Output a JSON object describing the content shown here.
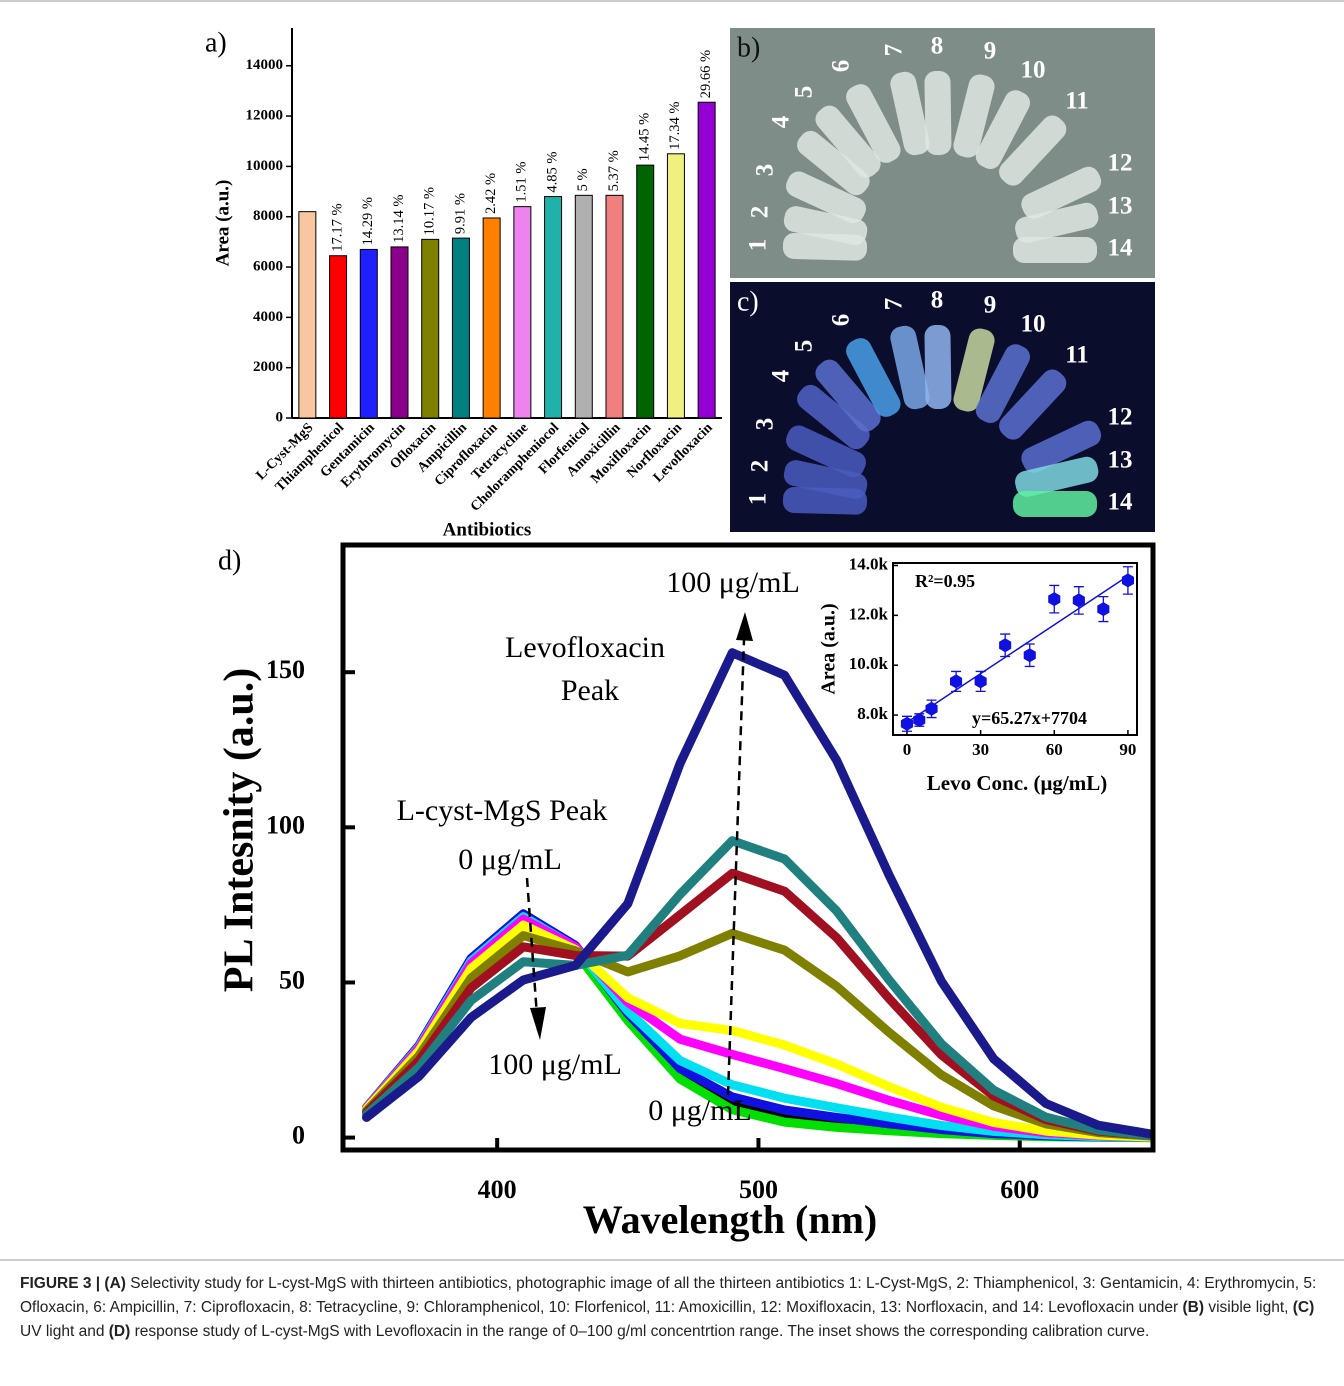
{
  "chart_data": [
    {
      "type": "bar",
      "panel_label": "a)",
      "x_label": "Antibiotics",
      "y_label": "Area (a.u.)",
      "categories": [
        "L-Cyst-MgS",
        "Thiamphenicol",
        "Gentamicin",
        "Erythromycin",
        "Ofloxacin",
        "Ampicillin",
        "Ciprofloxacin",
        "Tetracycline",
        "Cholorampheniocol",
        "Florfenicol",
        "Amoxicillin",
        "Moxifloxacin",
        "Norfloxacin",
        "Levofloxacin"
      ],
      "values": [
        8200,
        6450,
        6700,
        6800,
        7100,
        7150,
        7950,
        8400,
        8800,
        8850,
        8850,
        10050,
        10500,
        12550
      ],
      "bar_labels": [
        null,
        "17.17 %",
        "14.29 %",
        "13.14 %",
        "10.17 %",
        "9.91 %",
        "2.42 %",
        "1.51 %",
        "4.85 %",
        "5 %",
        "5.37 %",
        "14.45 %",
        "17.34 %",
        "29.66 %"
      ],
      "colors": [
        "#f9c79f",
        "#ff0000",
        "#1f1fff",
        "#8b008b",
        "#808000",
        "#008080",
        "#ff8000",
        "#ee82ee",
        "#20b2aa",
        "#b0b0b0",
        "#f08080",
        "#006400",
        "#f0f080",
        "#9400d3"
      ],
      "ylim": [
        0,
        15500
      ],
      "yticks": [
        0,
        2000,
        4000,
        6000,
        8000,
        10000,
        12000,
        14000
      ]
    },
    {
      "type": "line",
      "panel_label": "d)",
      "x_label": "Wavelength (nm)",
      "y_label": "PL Intesnity (a.u.)",
      "x": [
        350,
        370,
        390,
        410,
        430,
        450,
        470,
        490,
        510,
        530,
        550,
        570,
        590,
        610,
        630,
        650
      ],
      "series": [
        {
          "color": "#000000",
          "values": [
            9.7,
            29.6,
            57.7,
            72.1,
            61.7,
            39.4,
            20.8,
            11.2,
            7,
            4.9,
            3.3,
            2,
            1,
            0.4,
            0.2,
            0
          ]
        },
        {
          "color": "#00e000",
          "values": [
            9.5,
            28.8,
            56.1,
            70.1,
            59.8,
            37.7,
            18.9,
            9,
            5,
            3.3,
            2.2,
            1.3,
            0.7,
            0.3,
            0.1,
            0
          ]
        },
        {
          "color": "#1010e0",
          "values": [
            9.7,
            29.6,
            57.7,
            72.1,
            61.9,
            40,
            22.2,
            13.1,
            8.9,
            6.5,
            4.4,
            2.6,
            1.3,
            0.6,
            0.2,
            0.1
          ]
        },
        {
          "color": "#00e0f0",
          "values": [
            9.6,
            29.2,
            56.9,
            71.2,
            61.4,
            40.8,
            24.8,
            17,
            12.7,
            9.6,
            6.6,
            3.9,
            2,
            0.9,
            0.3,
            0.1
          ]
        },
        {
          "color": "#ff00ff",
          "values": [
            9.5,
            28.8,
            56.1,
            70.4,
            61.5,
            43.6,
            31.7,
            26.8,
            22.2,
            17.4,
            12,
            7.2,
            3.6,
            1.6,
            0.6,
            0.2
          ]
        },
        {
          "color": "#ffff00",
          "values": [
            9.2,
            27.9,
            54.5,
            68.5,
            60.6,
            45.1,
            36.8,
            34.5,
            29.8,
            23.7,
            16.4,
            9.8,
            4.9,
            2.1,
            0.8,
            0.2
          ]
        },
        {
          "color": "#808000",
          "values": [
            8.6,
            26.3,
            51.4,
            65.1,
            60.2,
            53.4,
            58.6,
            65.8,
            60.4,
            48.7,
            33.9,
            20.2,
            10.2,
            4.4,
            1.6,
            0.5
          ]
        },
        {
          "color": "#a01020",
          "values": [
            8.1,
            24.7,
            48.2,
            61.5,
            58.7,
            58.5,
            71.8,
            85.2,
            79.4,
            64.4,
            44.8,
            26.7,
            13.4,
            5.8,
            2.1,
            0.7
          ]
        },
        {
          "color": "#208080",
          "values": [
            7.4,
            22.6,
            44.2,
            56.7,
            55.5,
            58.8,
            78.4,
            95.7,
            89.8,
            73,
            50.8,
            30.2,
            15.3,
            6.6,
            2.4,
            0.7
          ]
        },
        {
          "color": "#1a1a8c",
          "values": [
            6.5,
            19.7,
            38.7,
            50.8,
            55.5,
            75.4,
            120.6,
            156.3,
            149,
            121.5,
            84.6,
            50.4,
            25.4,
            11,
            4,
            1.2
          ]
        }
      ],
      "xlim": [
        341,
        651
      ],
      "ylim": [
        -4,
        191
      ],
      "xticks": [
        400,
        500,
        600
      ],
      "yticks": [
        0,
        50,
        100,
        150
      ],
      "annotations": [
        "100 μg/mL",
        "Levofloxacin",
        "Peak",
        "L-cyst-MgS Peak",
        "0 μg/mL",
        "100 μg/mL",
        "0 μg/mL"
      ]
    },
    {
      "type": "scatter",
      "x_label": "Levo Conc. (μg/mL)",
      "y_label": "Area (a.u.)",
      "color": "#1010e0",
      "x": [
        0,
        5,
        10,
        20,
        30,
        40,
        50,
        60,
        70,
        80,
        90
      ],
      "values": [
        7650,
        7800,
        8250,
        9350,
        9350,
        10800,
        10400,
        12650,
        12600,
        12250,
        13400
      ],
      "errors": [
        300,
        250,
        350,
        400,
        400,
        450,
        450,
        550,
        550,
        500,
        550
      ],
      "fit": {
        "slope": 65.27,
        "intercept": 7704
      },
      "r2_label": "R²=0.95",
      "fit_label": "y=65.27x+7704",
      "xlim": [
        -5.7,
        93.7
      ],
      "ylim": [
        7200,
        14100
      ],
      "xticks": [
        0,
        30,
        60,
        90
      ],
      "yticks": [
        {
          "value": 8000,
          "label": "8.0k"
        },
        {
          "value": 10000,
          "label": "10.0k"
        },
        {
          "value": 12000,
          "label": "12.0k"
        },
        {
          "value": 14000,
          "label": "14.0k"
        }
      ]
    }
  ],
  "photos": {
    "b": {
      "label": "b)",
      "tubes": [
        "1",
        "2",
        "3",
        "4",
        "5",
        "6",
        "7",
        "8",
        "9",
        "10",
        "11",
        "12",
        "13",
        "14"
      ]
    },
    "c": {
      "label": "c)",
      "tubes": [
        "1",
        "2",
        "3",
        "4",
        "5",
        "6",
        "7",
        "8",
        "9",
        "10",
        "11",
        "12",
        "13",
        "14"
      ]
    }
  },
  "caption": [
    {
      "text": "FIGURE 3 | (A)",
      "bold": true
    },
    {
      "text": " Selectivity study for L-cyst-MgS with thirteen antibiotics, photographic image of all the thirteen antibiotics 1: L-Cyst-MgS, 2: Thiamphenicol, 3: Gentamicin, 4: Erythromycin, 5: Ofloxacin, 6: Ampicillin, 7: Ciprofloxacin, 8: Tetracycline, 9: Chloramphenicol, 10: Florfenicol, 11: Amoxicillin, 12: Moxifloxacin, 13: Norfloxacin, and 14: Levofloxacin under ",
      "bold": false
    },
    {
      "text": "(B)",
      "bold": true
    },
    {
      "text": " visible light, ",
      "bold": false
    },
    {
      "text": "(C)",
      "bold": true
    },
    {
      "text": " UV light and ",
      "bold": false
    },
    {
      "text": "(D)",
      "bold": true
    },
    {
      "text": " response study of L-cyst-MgS with Levofloxacin in the range of 0–100 g/ml concentrtion range. The inset shows the corresponding calibration curve.",
      "bold": false
    }
  ]
}
